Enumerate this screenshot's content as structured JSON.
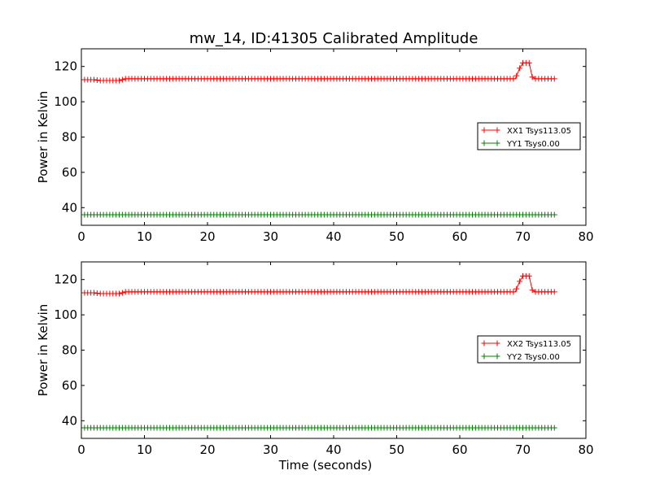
{
  "figure": {
    "title": "mw_14, ID:41305 Calibrated Amplitude"
  },
  "chart_data": [
    {
      "type": "line",
      "xlabel": "",
      "ylabel": "Power in Kelvin",
      "xlim": [
        0,
        80
      ],
      "ylim": [
        30,
        130
      ],
      "xticks": [
        0,
        10,
        20,
        30,
        40,
        50,
        60,
        70,
        80
      ],
      "yticks": [
        40,
        60,
        80,
        100,
        120
      ],
      "grid": false,
      "legend_position": "center-right",
      "series": [
        {
          "name": "XX1 Tsys113.05",
          "color": "#ff0000",
          "marker": "+",
          "points": [
            [
              0,
              112.5
            ],
            [
              2,
              112.5
            ],
            [
              3,
              112
            ],
            [
              6,
              112
            ],
            [
              7,
              113
            ],
            [
              68.8,
              113
            ],
            [
              69.5,
              119
            ],
            [
              70,
              122
            ],
            [
              71,
              122
            ],
            [
              71.5,
              114
            ],
            [
              72,
              113
            ],
            [
              75,
              113
            ]
          ]
        },
        {
          "name": "YY1 Tsys0.00",
          "color": "#008000",
          "marker": "+",
          "points": [
            [
              0,
              36
            ],
            [
              75,
              36
            ]
          ]
        }
      ]
    },
    {
      "type": "line",
      "xlabel": "Time (seconds)",
      "ylabel": "Power in Kelvin",
      "xlim": [
        0,
        80
      ],
      "ylim": [
        30,
        130
      ],
      "xticks": [
        0,
        10,
        20,
        30,
        40,
        50,
        60,
        70,
        80
      ],
      "yticks": [
        40,
        60,
        80,
        100,
        120
      ],
      "grid": false,
      "legend_position": "center-right",
      "series": [
        {
          "name": "XX2 Tsys113.05",
          "color": "#ff0000",
          "marker": "+",
          "points": [
            [
              0,
              112.5
            ],
            [
              2,
              112.5
            ],
            [
              3,
              112
            ],
            [
              6,
              112
            ],
            [
              7,
              113
            ],
            [
              68.8,
              113
            ],
            [
              69.5,
              119
            ],
            [
              70,
              122
            ],
            [
              71,
              122
            ],
            [
              71.5,
              114
            ],
            [
              72,
              113
            ],
            [
              75,
              113
            ]
          ]
        },
        {
          "name": "YY2 Tsys0.00",
          "color": "#008000",
          "marker": "+",
          "points": [
            [
              0,
              36
            ],
            [
              75,
              36
            ]
          ]
        }
      ]
    }
  ]
}
